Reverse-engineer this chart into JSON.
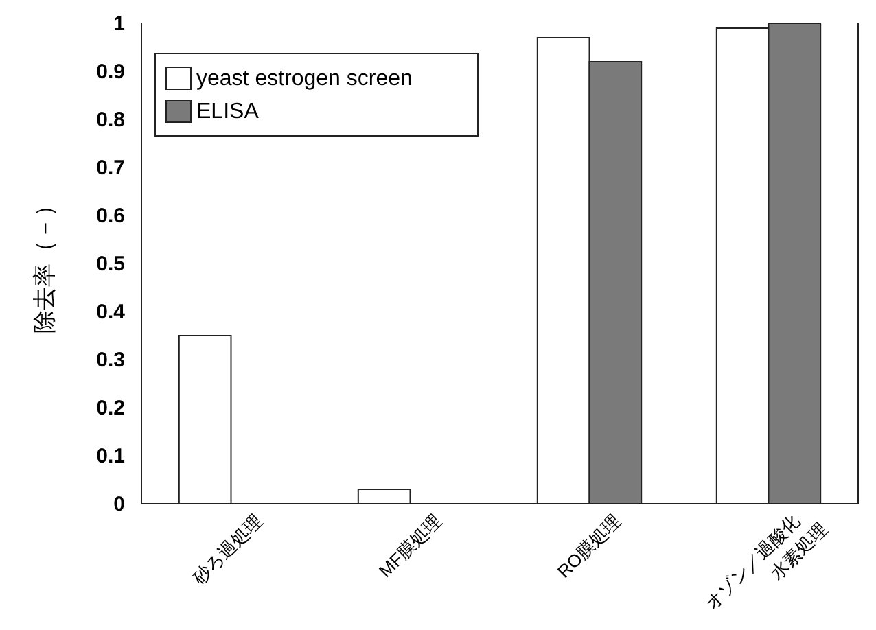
{
  "chart_data": {
    "type": "bar",
    "ylabel": "除去率（－）",
    "categories": [
      "砂ろ過処理",
      "MF膜処理",
      "RO膜処理",
      "オゾン／過酸化水素処理"
    ],
    "series": [
      {
        "name": "yeast estrogen screen",
        "color": "#ffffff",
        "values": [
          0.35,
          0.03,
          0.97,
          0.99
        ]
      },
      {
        "name": "ELISA",
        "color": "#7a7a7a",
        "values": [
          null,
          null,
          0.92,
          1.0
        ]
      }
    ],
    "ylim": [
      0,
      1
    ],
    "yticks": [
      0,
      0.1,
      0.2,
      0.3,
      0.4,
      0.5,
      0.6,
      0.7,
      0.8,
      0.9,
      1
    ],
    "legend": "top left",
    "grid": false
  }
}
